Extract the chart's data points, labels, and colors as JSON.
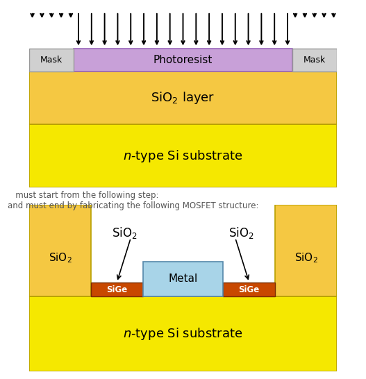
{
  "fig_width": 5.27,
  "fig_height": 5.46,
  "bg_color": "#ffffff",
  "top_diagram": {
    "substrate_color": "#f5e800",
    "substrate_border": "#b8a000",
    "sio2_color": "#f5c842",
    "sio2_border": "#b8a000",
    "photoresist_color": "#c8a0d8",
    "photoresist_border": "#9966bb",
    "mask_color": "#d0d0d0",
    "mask_border": "#999999",
    "substrate_label": "$n$-type Si substrate",
    "sio2_label": "SiO$_2$ layer",
    "photoresist_label": "Photoresist",
    "mask_label": "Mask"
  },
  "middle_text": {
    "line1": "   must start from the following step:",
    "line2": "and must end by fabricating the following MOSFET structure:",
    "fontsize": 8.5,
    "color": "#555555"
  },
  "bottom_diagram": {
    "substrate_color": "#f5e800",
    "substrate_border": "#b8a000",
    "sio2_color": "#f5c842",
    "sio2_border": "#b8a000",
    "sige_color": "#c84800",
    "sige_border": "#7a2c00",
    "metal_color": "#a8d4e8",
    "metal_border": "#5588aa",
    "substrate_label": "$n$-type Si substrate",
    "sio2_outer_left_label": "SiO$_2$",
    "sio2_outer_right_label": "SiO$_2$",
    "sio2_inner_left_label": "SiO$_2$",
    "sio2_inner_right_label": "SiO$_2$",
    "sige_left_label": "SiGe",
    "sige_right_label": "SiGe",
    "metal_label": "Metal"
  }
}
